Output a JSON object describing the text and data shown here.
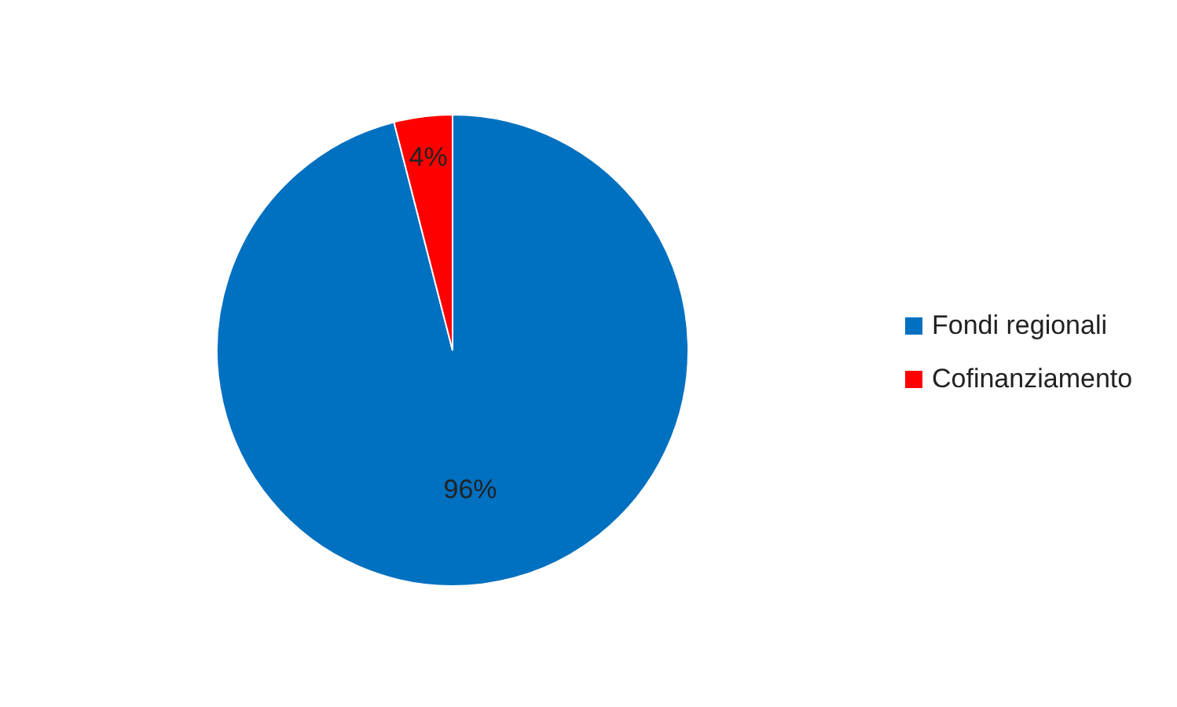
{
  "chart_data": {
    "type": "pie",
    "categories": [
      "Fondi regionali",
      "Cofinanziamento"
    ],
    "values": [
      96,
      4
    ],
    "colors": [
      "#0070c0",
      "#ff0000"
    ],
    "value_labels": [
      "96%",
      "4%"
    ],
    "legend": "right"
  }
}
